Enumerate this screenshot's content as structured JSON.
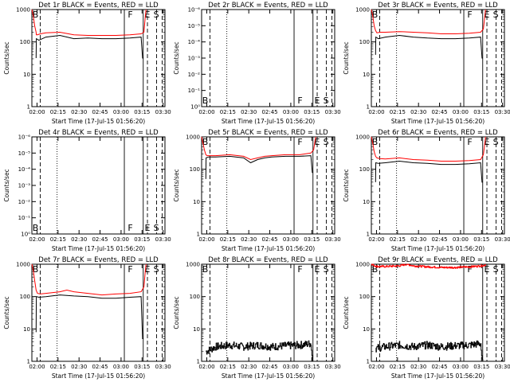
{
  "chart_data": [
    {
      "type": "line",
      "title": "Det 1r BLACK = Events, RED = LLD",
      "xlabel": "Start Time (17-Jul-15 01:56:20)",
      "ylabel": "Counts/sec",
      "yscale": "log",
      "ylim_log": [
        0,
        3
      ],
      "ytick_labels": [
        "1",
        "10",
        "100",
        "1000"
      ],
      "xticks": [
        "02:00",
        "02:15",
        "02:30",
        "02:45",
        "03:00",
        "03:15",
        "03:30"
      ],
      "markers": [
        "B",
        "F",
        "E",
        "S"
      ],
      "series": [
        {
          "color": "#ff0000",
          "x": [
            0,
            1,
            2,
            3,
            3.2,
            4,
            6,
            10,
            20,
            30,
            40,
            50,
            60,
            70,
            78,
            80,
            81,
            81.5
          ],
          "y": [
            3,
            2.8,
            2.5,
            2.3,
            2.22,
            2.22,
            2.25,
            2.28,
            2.3,
            2.22,
            2.2,
            2.2,
            2.2,
            2.22,
            2.25,
            2.3,
            2.8,
            3
          ]
        },
        {
          "color": "#000000",
          "x": [
            3,
            3.2,
            5,
            10,
            20,
            30,
            40,
            50,
            60,
            70,
            78,
            79,
            79.5
          ],
          "y": [
            1.5,
            2.1,
            2.05,
            2.15,
            2.2,
            2.1,
            2.12,
            2.1,
            2.1,
            2.12,
            2.15,
            1.5,
            1.5
          ]
        }
      ]
    },
    {
      "type": "line",
      "title": "Det 2r BLACK = Events, RED = LLD",
      "xlabel": "Start Time (17-Jul-15 01:56:20)",
      "ylabel": "Counts/sec",
      "yscale": "log",
      "ylim_log": [
        0,
        1
      ],
      "ytick_labels": [
        "10⁰",
        "10⁻¹",
        "10⁻²",
        "10⁻³",
        "10⁻⁴",
        "10⁻⁵",
        "10⁻⁶"
      ],
      "xticks": [
        "02:00",
        "02:15",
        "02:30",
        "02:45",
        "03:00",
        "03:15",
        "03:30"
      ],
      "markers": [
        "B",
        "F",
        "E",
        "S"
      ],
      "series": []
    },
    {
      "type": "line",
      "title": "Det 3r BLACK = Events, RED = LLD",
      "xlabel": "Start Time (17-Jul-15 01:56:20)",
      "ylabel": "Counts/sec",
      "yscale": "log",
      "ylim_log": [
        0,
        3
      ],
      "ytick_labels": [
        "1",
        "10",
        "100",
        "1000"
      ],
      "xticks": [
        "02:00",
        "02:15",
        "02:30",
        "02:45",
        "03:00",
        "03:15",
        "03:30"
      ],
      "markers": [
        "B",
        "F",
        "E",
        "S"
      ],
      "series": [
        {
          "color": "#ff0000",
          "x": [
            0,
            1,
            2,
            3,
            4,
            6,
            10,
            20,
            30,
            40,
            50,
            60,
            70,
            78,
            80,
            81,
            81.5
          ],
          "y": [
            3,
            2.8,
            2.5,
            2.35,
            2.28,
            2.3,
            2.3,
            2.32,
            2.3,
            2.28,
            2.25,
            2.25,
            2.27,
            2.3,
            2.4,
            2.8,
            3
          ]
        },
        {
          "color": "#000000",
          "x": [
            3,
            3.2,
            5,
            10,
            20,
            30,
            40,
            50,
            60,
            70,
            78,
            79,
            79.5
          ],
          "y": [
            1.6,
            2.15,
            2.1,
            2.15,
            2.2,
            2.15,
            2.12,
            2.1,
            2.1,
            2.12,
            2.15,
            1.5,
            1.5
          ]
        }
      ]
    },
    {
      "type": "line",
      "title": "Det 4r BLACK = Events, RED = LLD",
      "xlabel": "Start Time (17-Jul-15 01:56:20)",
      "ylabel": "Counts/sec",
      "yscale": "log",
      "ylim_log": [
        0,
        1
      ],
      "ytick_labels": [
        "10⁰",
        "10⁻¹",
        "10⁻²",
        "10⁻³",
        "10⁻⁴",
        "10⁻⁵",
        "10⁻⁶"
      ],
      "xticks": [
        "02:00",
        "02:15",
        "02:30",
        "02:45",
        "03:00",
        "03:15",
        "03:30"
      ],
      "markers": [
        "B",
        "F",
        "E",
        "S"
      ],
      "series": []
    },
    {
      "type": "line",
      "title": "Det 5r BLACK = Events, RED = LLD",
      "xlabel": "Start Time (17-Jul-15 01:56:20)",
      "ylabel": "Counts/sec",
      "yscale": "log",
      "ylim_log": [
        0,
        3
      ],
      "ytick_labels": [
        "1",
        "10",
        "100",
        "1000"
      ],
      "xticks": [
        "02:00",
        "02:15",
        "02:30",
        "02:45",
        "03:00",
        "03:15",
        "03:30"
      ],
      "markers": [
        "B",
        "F",
        "E",
        "S"
      ],
      "series": [
        {
          "color": "#ff0000",
          "x": [
            0,
            1,
            2,
            3,
            4,
            10,
            20,
            30,
            35,
            40,
            45,
            50,
            60,
            70,
            78,
            80,
            81,
            81.5
          ],
          "y": [
            3,
            2.8,
            2.6,
            2.45,
            2.42,
            2.42,
            2.45,
            2.4,
            2.3,
            2.35,
            2.4,
            2.42,
            2.45,
            2.45,
            2.5,
            2.6,
            2.9,
            3
          ]
        },
        {
          "color": "#000000",
          "x": [
            3,
            3.2,
            5,
            10,
            20,
            30,
            35,
            40,
            45,
            50,
            60,
            70,
            78,
            79,
            79.5
          ],
          "y": [
            1.7,
            2.35,
            2.38,
            2.38,
            2.4,
            2.35,
            2.2,
            2.3,
            2.35,
            2.38,
            2.4,
            2.4,
            2.42,
            1.9,
            1.9
          ]
        }
      ]
    },
    {
      "type": "line",
      "title": "Det 6r BLACK = Events, RED = LLD",
      "xlabel": "Start Time (17-Jul-15 01:56:20)",
      "ylabel": "Counts/sec",
      "yscale": "log",
      "ylim_log": [
        0,
        3
      ],
      "ytick_labels": [
        "1",
        "10",
        "100",
        "1000"
      ],
      "xticks": [
        "02:00",
        "02:15",
        "02:30",
        "02:45",
        "03:00",
        "03:15",
        "03:30"
      ],
      "markers": [
        "B",
        "F",
        "E",
        "S"
      ],
      "series": [
        {
          "color": "#ff0000",
          "x": [
            0,
            1,
            2,
            3,
            4,
            6,
            10,
            20,
            30,
            40,
            50,
            60,
            70,
            78,
            80,
            81,
            81.5
          ],
          "y": [
            3,
            2.8,
            2.55,
            2.4,
            2.35,
            2.33,
            2.32,
            2.35,
            2.3,
            2.28,
            2.25,
            2.25,
            2.27,
            2.3,
            2.45,
            2.8,
            3
          ]
        },
        {
          "color": "#000000",
          "x": [
            3,
            3.2,
            5,
            10,
            20,
            30,
            40,
            50,
            60,
            70,
            78,
            79,
            79.5
          ],
          "y": [
            1.6,
            2.2,
            2.18,
            2.2,
            2.25,
            2.2,
            2.18,
            2.15,
            2.15,
            2.17,
            2.2,
            1.6,
            1.6
          ]
        }
      ]
    },
    {
      "type": "line",
      "title": "Det 7r BLACK = Events, RED = LLD",
      "xlabel": "Start Time (17-Jul-15 01:56:20)",
      "ylabel": "Counts/sec",
      "yscale": "log",
      "ylim_log": [
        0,
        3
      ],
      "ytick_labels": [
        "1",
        "10",
        "100",
        "1000"
      ],
      "xticks": [
        "02:00",
        "02:15",
        "02:30",
        "02:45",
        "03:00",
        "03:15",
        "03:30"
      ],
      "markers": [
        "B",
        "F",
        "E",
        "S"
      ],
      "series": [
        {
          "color": "#ff0000",
          "x": [
            0,
            1,
            2,
            3,
            4,
            6,
            10,
            20,
            25,
            30,
            40,
            50,
            60,
            70,
            78,
            80,
            81,
            81.5
          ],
          "y": [
            3,
            2.8,
            2.5,
            2.2,
            2.1,
            2.08,
            2.1,
            2.15,
            2.2,
            2.15,
            2.1,
            2.05,
            2.08,
            2.1,
            2.15,
            2.3,
            2.8,
            3
          ]
        },
        {
          "color": "#000000",
          "x": [
            3,
            3.2,
            5,
            10,
            20,
            30,
            40,
            50,
            60,
            70,
            78,
            79,
            79.5
          ],
          "y": [
            0.9,
            2.0,
            1.98,
            2.0,
            2.05,
            2.02,
            2.0,
            1.95,
            1.95,
            1.98,
            2.0,
            0.7,
            0.7
          ]
        }
      ]
    },
    {
      "type": "line",
      "title": "Det 8r BLACK = Events, RED = LLD",
      "xlabel": "Start Time (17-Jul-15 01:56:20)",
      "ylabel": "Counts/sec",
      "yscale": "log",
      "ylim_log": [
        0,
        3
      ],
      "ytick_labels": [
        "1",
        "10",
        "100",
        "1000"
      ],
      "xticks": [
        "02:00",
        "02:15",
        "02:30",
        "02:45",
        "03:00",
        "03:15",
        "03:30"
      ],
      "markers": [
        "B",
        "F",
        "E",
        "S"
      ],
      "series": [
        {
          "color": "#000000",
          "x": [
            3,
            10,
            20,
            30,
            40,
            50,
            60,
            70,
            78,
            79,
            79.5
          ],
          "y": [
            0.3,
            0.45,
            0.5,
            0.45,
            0.5,
            0.45,
            0.48,
            0.5,
            0.55,
            0,
            0
          ],
          "noisy": true
        }
      ]
    },
    {
      "type": "line",
      "title": "Det 9r BLACK = Events, RED = LLD",
      "xlabel": "Start Time (17-Jul-15 01:56:20)",
      "ylabel": "Counts/sec",
      "yscale": "log",
      "ylim_log": [
        0,
        3
      ],
      "ytick_labels": [
        "1",
        "10",
        "100",
        "1000"
      ],
      "xticks": [
        "02:00",
        "02:15",
        "02:30",
        "02:45",
        "03:00",
        "03:15",
        "03:30"
      ],
      "markers": [
        "B",
        "F",
        "E",
        "S"
      ],
      "series": [
        {
          "color": "#ff0000",
          "x": [
            0,
            1,
            3,
            5,
            10,
            20,
            25,
            30,
            40,
            50,
            60,
            70,
            78,
            80,
            81,
            81.5
          ],
          "y": [
            3,
            2.98,
            2.94,
            2.93,
            2.93,
            2.95,
            3.0,
            2.95,
            2.92,
            2.9,
            2.9,
            2.92,
            2.95,
            2.96,
            2.98,
            3
          ],
          "noisy": true
        },
        {
          "color": "#000000",
          "x": [
            3,
            10,
            20,
            30,
            40,
            50,
            60,
            70,
            78,
            79,
            79.5
          ],
          "y": [
            0.4,
            0.45,
            0.5,
            0.45,
            0.5,
            0.45,
            0.48,
            0.5,
            0.55,
            0,
            0
          ],
          "noisy": true
        }
      ]
    }
  ]
}
